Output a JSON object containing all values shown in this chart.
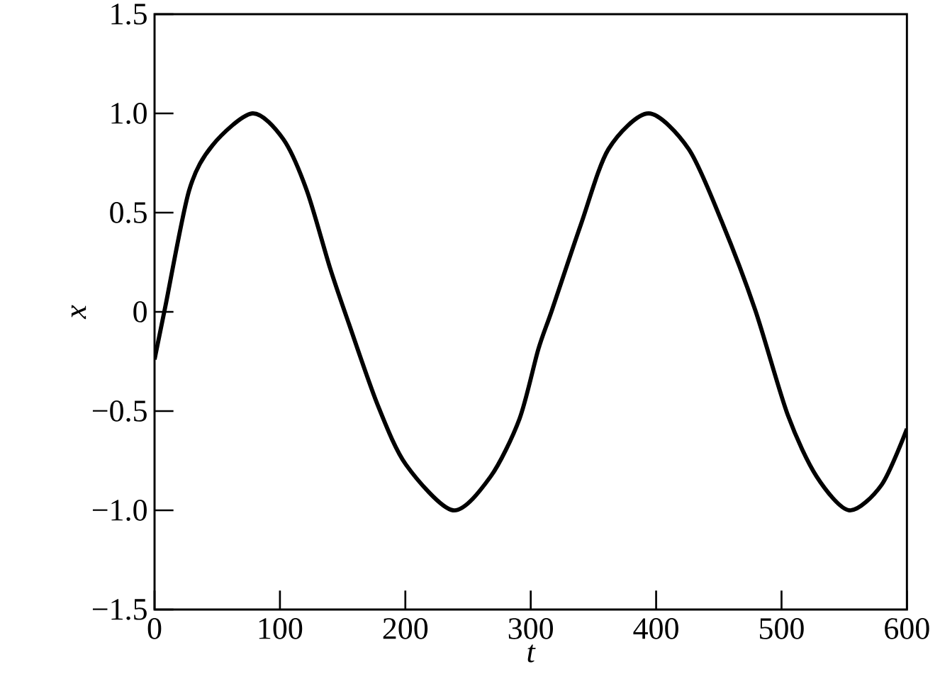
{
  "chart_data": {
    "type": "line",
    "xlabel": "t",
    "ylabel": "x",
    "xlim": [
      0,
      600
    ],
    "ylim": [
      -1.5,
      1.5
    ],
    "xticks": [
      0,
      100,
      200,
      300,
      400,
      500,
      600
    ],
    "yticks": [
      {
        "value": -1.5,
        "label": "−1.5"
      },
      {
        "value": -1.0,
        "label": "−1.0"
      },
      {
        "value": -0.5,
        "label": "−0.5"
      },
      {
        "value": 0,
        "label": "0"
      },
      {
        "value": 0.5,
        "label": "0.5"
      },
      {
        "value": 1.0,
        "label": "1.0"
      },
      {
        "value": 1.5,
        "label": "1.5"
      }
    ],
    "grid": false,
    "marker": "none",
    "line_style": "solid",
    "series": [
      {
        "color": "#000000",
        "x": [
          0,
          8.7,
          27.5,
          46.3,
          78,
          102.7,
          121.5,
          140,
          155,
          178,
          200.5,
          238,
          268,
          291,
          306,
          317,
          340,
          362,
          394,
          426,
          452,
          479,
          505,
          528,
          554,
          580,
          600
        ],
        "values": [
          -0.24,
          0.03,
          0.61,
          0.84,
          1.0,
          0.87,
          0.61,
          0.22,
          -0.06,
          -0.47,
          -0.77,
          -1.0,
          -0.83,
          -0.54,
          -0.19,
          0.01,
          0.44,
          0.82,
          1.0,
          0.82,
          0.46,
          0.01,
          -0.52,
          -0.83,
          -1.0,
          -0.87,
          -0.59
        ]
      }
    ]
  }
}
